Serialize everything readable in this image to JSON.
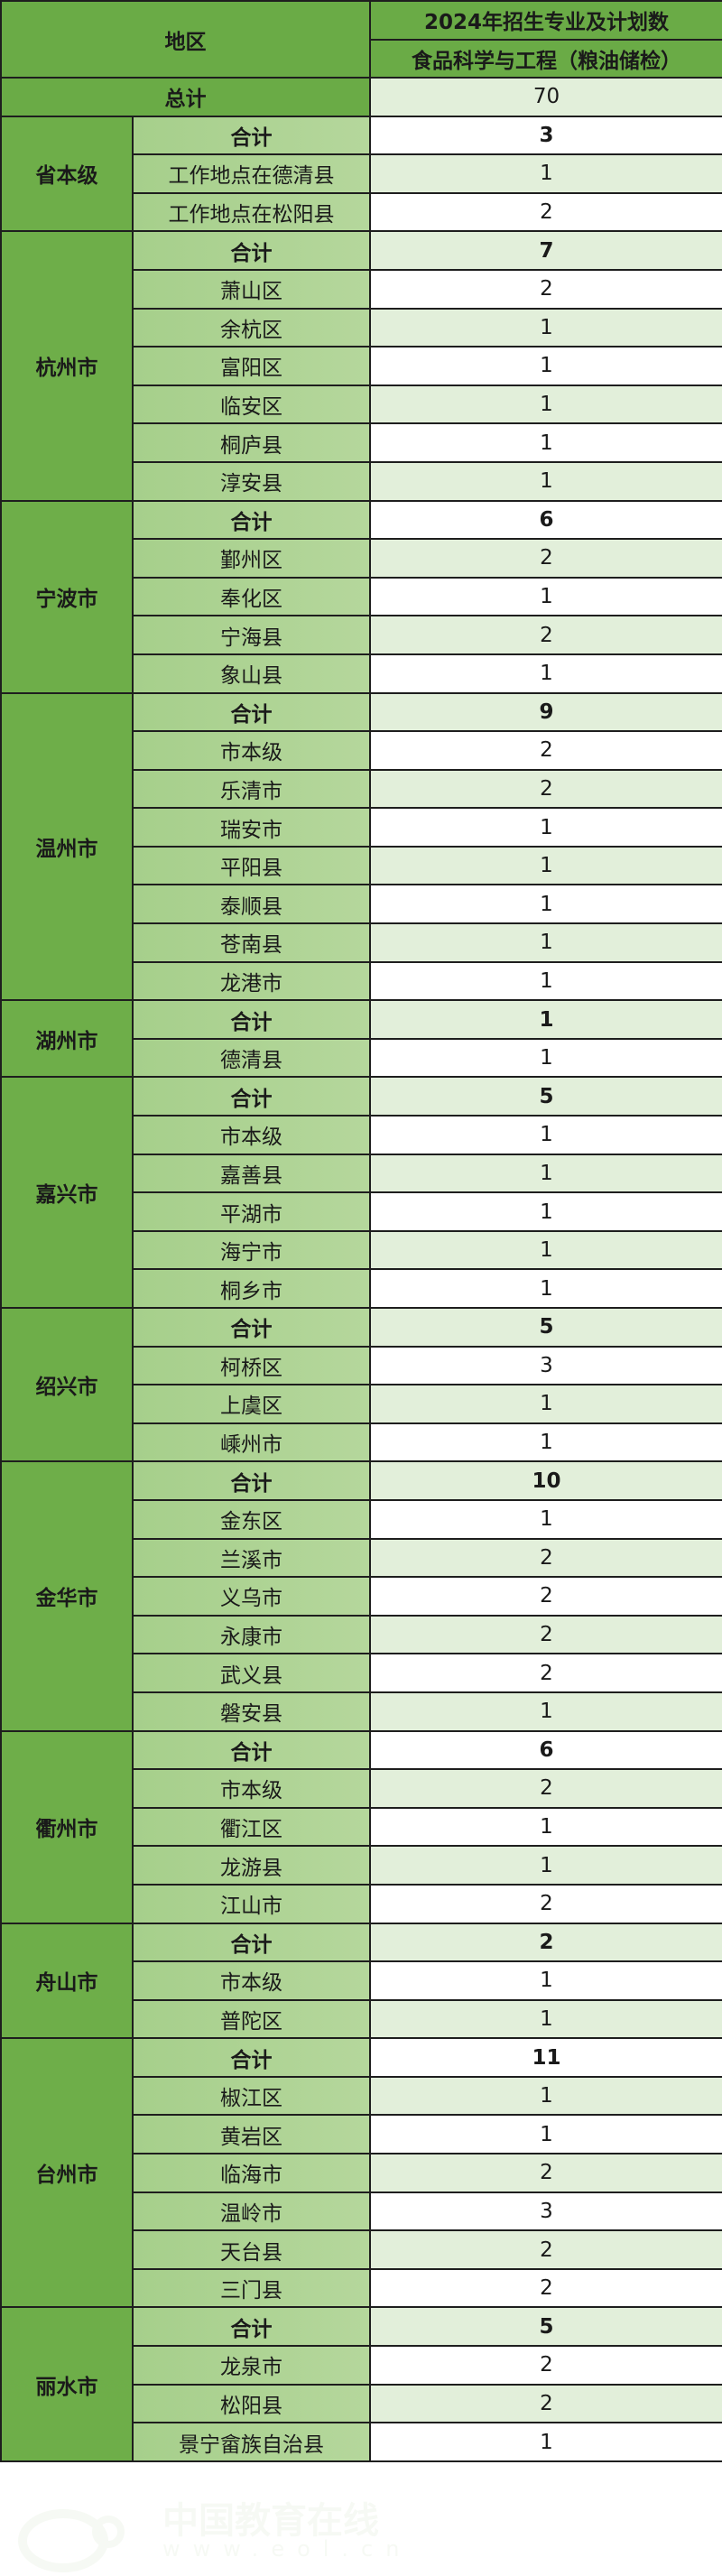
{
  "header": {
    "region": "地区",
    "plan_title": "2024年招生专业及计划数",
    "major": "食品科学与工程（粮油储检）"
  },
  "total": {
    "label": "总计",
    "value": "70"
  },
  "subtotal_label": "合计",
  "colors": {
    "header_green": "#6aab46",
    "sub_green": "#a6cf8b",
    "row_light": "#e2efda",
    "row_white": "#ffffff"
  },
  "groups": [
    {
      "city": "省本级",
      "total": "3",
      "items": [
        [
          "工作地点在德清县",
          "1"
        ],
        [
          "工作地点在松阳县",
          "2"
        ]
      ]
    },
    {
      "city": "杭州市",
      "total": "7",
      "items": [
        [
          "萧山区",
          "2"
        ],
        [
          "余杭区",
          "1"
        ],
        [
          "富阳区",
          "1"
        ],
        [
          "临安区",
          "1"
        ],
        [
          "桐庐县",
          "1"
        ],
        [
          "淳安县",
          "1"
        ]
      ]
    },
    {
      "city": "宁波市",
      "total": "6",
      "items": [
        [
          "鄞州区",
          "2"
        ],
        [
          "奉化区",
          "1"
        ],
        [
          "宁海县",
          "2"
        ],
        [
          "象山县",
          "1"
        ]
      ]
    },
    {
      "city": "温州市",
      "total": "9",
      "items": [
        [
          "市本级",
          "2"
        ],
        [
          "乐清市",
          "2"
        ],
        [
          "瑞安市",
          "1"
        ],
        [
          "平阳县",
          "1"
        ],
        [
          "泰顺县",
          "1"
        ],
        [
          "苍南县",
          "1"
        ],
        [
          "龙港市",
          "1"
        ]
      ]
    },
    {
      "city": "湖州市",
      "total": "1",
      "items": [
        [
          "德清县",
          "1"
        ]
      ]
    },
    {
      "city": "嘉兴市",
      "total": "5",
      "items": [
        [
          "市本级",
          "1"
        ],
        [
          "嘉善县",
          "1"
        ],
        [
          "平湖市",
          "1"
        ],
        [
          "海宁市",
          "1"
        ],
        [
          "桐乡市",
          "1"
        ]
      ]
    },
    {
      "city": "绍兴市",
      "total": "5",
      "items": [
        [
          "柯桥区",
          "3"
        ],
        [
          "上虞区",
          "1"
        ],
        [
          "嵊州市",
          "1"
        ]
      ]
    },
    {
      "city": "金华市",
      "total": "10",
      "items": [
        [
          "金东区",
          "1"
        ],
        [
          "兰溪市",
          "2"
        ],
        [
          "义乌市",
          "2"
        ],
        [
          "永康市",
          "2"
        ],
        [
          "武义县",
          "2"
        ],
        [
          "磐安县",
          "1"
        ]
      ]
    },
    {
      "city": "衢州市",
      "total": "6",
      "items": [
        [
          "市本级",
          "2"
        ],
        [
          "衢江区",
          "1"
        ],
        [
          "龙游县",
          "1"
        ],
        [
          "江山市",
          "2"
        ]
      ]
    },
    {
      "city": "舟山市",
      "total": "2",
      "items": [
        [
          "市本级",
          "1"
        ],
        [
          "普陀区",
          "1"
        ]
      ]
    },
    {
      "city": "台州市",
      "total": "11",
      "items": [
        [
          "椒江区",
          "1"
        ],
        [
          "黄岩区",
          "1"
        ],
        [
          "临海市",
          "2"
        ],
        [
          "温岭市",
          "3"
        ],
        [
          "天台县",
          "2"
        ],
        [
          "三门县",
          "2"
        ]
      ]
    },
    {
      "city": "丽水市",
      "total": "5",
      "items": [
        [
          "龙泉市",
          "2"
        ],
        [
          "松阳县",
          "2"
        ],
        [
          "景宁畲族自治县",
          "1"
        ]
      ]
    }
  ],
  "watermark": {
    "text": "中国教育在线",
    "url_text": "www.eol.cn"
  }
}
